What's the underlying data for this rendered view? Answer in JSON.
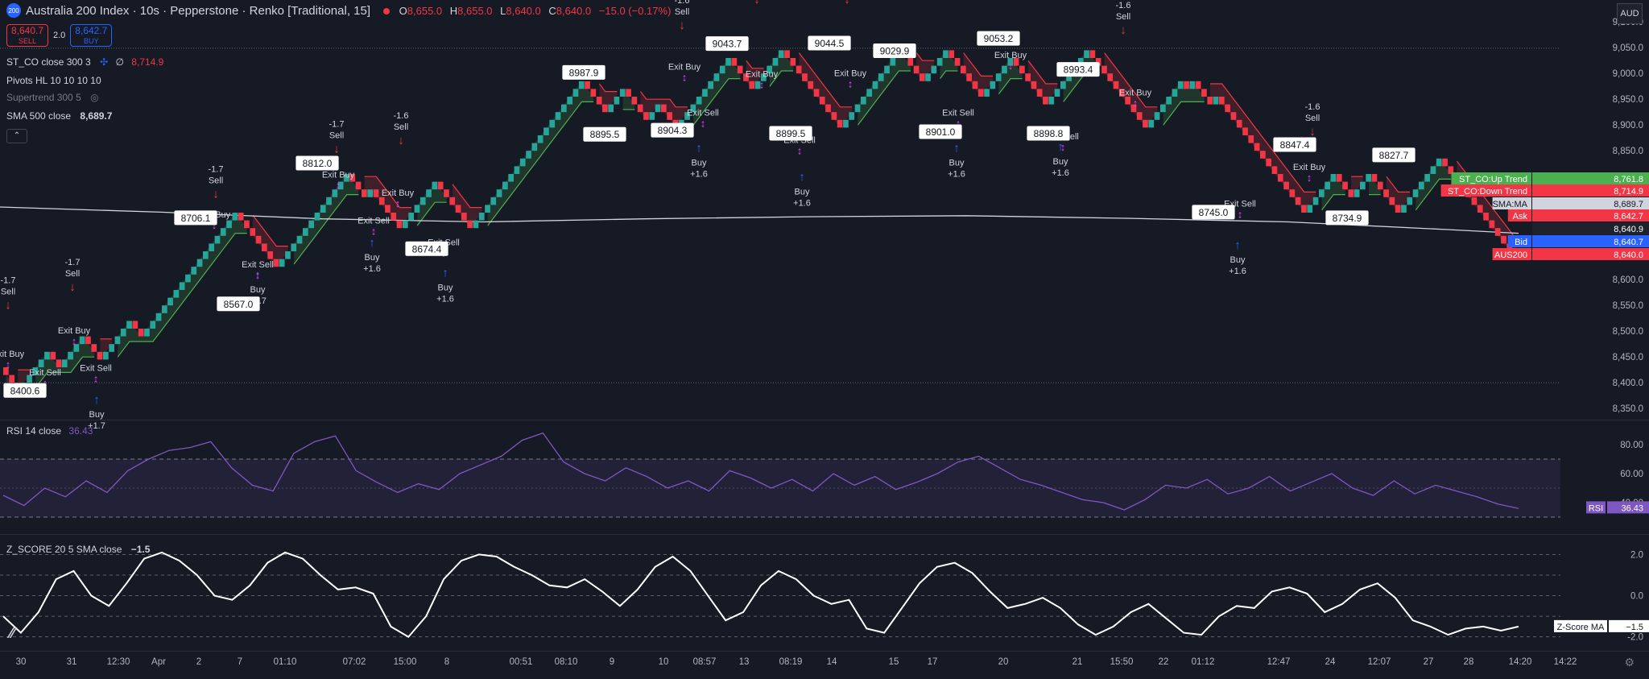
{
  "header": {
    "title": "Australia 200 Index · 10s · Pepperstone · Renko [Traditional, 15]",
    "logo_text": "200",
    "ohlc": [
      {
        "k": "O",
        "v": "8,655.0"
      },
      {
        "k": "H",
        "v": "8,655.0"
      },
      {
        "k": "L",
        "v": "8,640.0"
      },
      {
        "k": "C",
        "v": "8,640.0"
      },
      {
        "k": "",
        "v": "−15.0 (−0.17%)"
      }
    ]
  },
  "trade": {
    "sell_price": "8,640.7",
    "sell_label": "SELL",
    "spread": "2.0",
    "buy_price": "8,642.7",
    "buy_label": "BUY"
  },
  "indicators": [
    {
      "name": "ST_CO close 300 3",
      "extra": "∅",
      "value": "8,714.9"
    },
    {
      "name": "Pivots HL 10 10 10 10",
      "value": ""
    },
    {
      "name": "Supertrend 300 5",
      "value": ""
    },
    {
      "name": "SMA 500 close",
      "value": "8,689.7"
    }
  ],
  "currency": "AUD",
  "colors": {
    "background": "#161a25",
    "up": "#26a69a",
    "down": "#f23645",
    "buy_signal": "#2962ff",
    "sell_signal": "#f23645",
    "rsi": "#7e57c2",
    "zscore": "#ffffff",
    "grid": "#363a45"
  },
  "chart_data": [
    {
      "type": "renko",
      "title": "Australia 200 Index · 10s · Pepperstone · Renko [Traditional, 15]",
      "brick_size": 15,
      "ylim": [
        8330,
        9130
      ],
      "y_ticks": [
        9100.0,
        9050.0,
        9000.0,
        8950.0,
        8900.0,
        8850.0,
        8800.0,
        8750.0,
        8700.0,
        8650.0,
        8600.0,
        8550.0,
        8500.0,
        8450.0,
        8400.0,
        8350.0
      ],
      "x_ticks": [
        "30",
        "31",
        "12:30",
        "Apr",
        "2",
        "7",
        "01:10",
        "07:02",
        "15:00",
        "8",
        "00:51",
        "08:10",
        "9",
        "10",
        "08:57",
        "13",
        "08:19",
        "14",
        "15",
        "17",
        "20",
        "21",
        "15:50",
        "22",
        "01:12",
        "12:47",
        "24",
        "12:07",
        "27",
        "28",
        "14:20",
        "14:22"
      ],
      "dotted_levels": [
        9049,
        8400
      ],
      "pivot_labels": [
        "8400.6",
        "8567.0",
        "8706.1",
        "8812.0",
        "8674.4",
        "8987.9",
        "8895.5",
        "8904.3",
        "9043.7",
        "8899.5",
        "9044.5",
        "9029.9",
        "8901.0",
        "9053.2",
        "8898.8",
        "8993.4",
        "8745.0",
        "8847.4",
        "8734.9",
        "8827.7"
      ],
      "signals": [
        {
          "type": "buy",
          "text": "Buy",
          "pnl": "+1.7"
        },
        {
          "type": "sell",
          "text": "Sell",
          "pnl": "-1.7"
        },
        {
          "type": "exit",
          "text": "Exit Buy"
        },
        {
          "type": "exit",
          "text": "Exit Sell"
        },
        {
          "type": "buy",
          "text": "Buy",
          "pnl": "+1.6"
        },
        {
          "type": "sell",
          "text": "Sell",
          "pnl": "-1.6"
        }
      ],
      "series": [
        {
          "name": "ST_CO:Up Trend",
          "last": "8,761.8",
          "color": "#4caf50"
        },
        {
          "name": "ST_CO:Down Trend",
          "last": "8,714.9",
          "color": "#f23645"
        },
        {
          "name": "SMA:MA",
          "last": "8,689.7",
          "color": "#d1d4dc"
        },
        {
          "name": "Ask",
          "last": "8,642.7",
          "color": "#f23645"
        },
        {
          "name": "",
          "last": "8,640.9",
          "color": "#1e222d"
        },
        {
          "name": "Bid",
          "last": "8,640.7",
          "color": "#2962ff"
        },
        {
          "name": "AUS200",
          "last": "8,640.0",
          "color": "#f23645"
        }
      ]
    },
    {
      "type": "line",
      "title": "RSI 14 close",
      "value": "36.43",
      "ylim": [
        20,
        95
      ],
      "y_ticks": [
        80.0,
        60.0,
        40.0
      ],
      "bands": [
        70,
        30
      ],
      "series": [
        {
          "name": "RSI",
          "last": "36.43"
        }
      ]
    },
    {
      "type": "line",
      "title": "Z_SCORE 20 5 SMA close",
      "value": "−1.5",
      "ylim": [
        -2.6,
        2.8
      ],
      "y_ticks": [
        2.0,
        0.0,
        -2.0
      ],
      "levels": [
        2.0,
        1.0,
        0.0,
        -1.0,
        -2.0
      ],
      "series": [
        {
          "name": "Z-Score MA",
          "last": "−1.5"
        }
      ]
    }
  ]
}
